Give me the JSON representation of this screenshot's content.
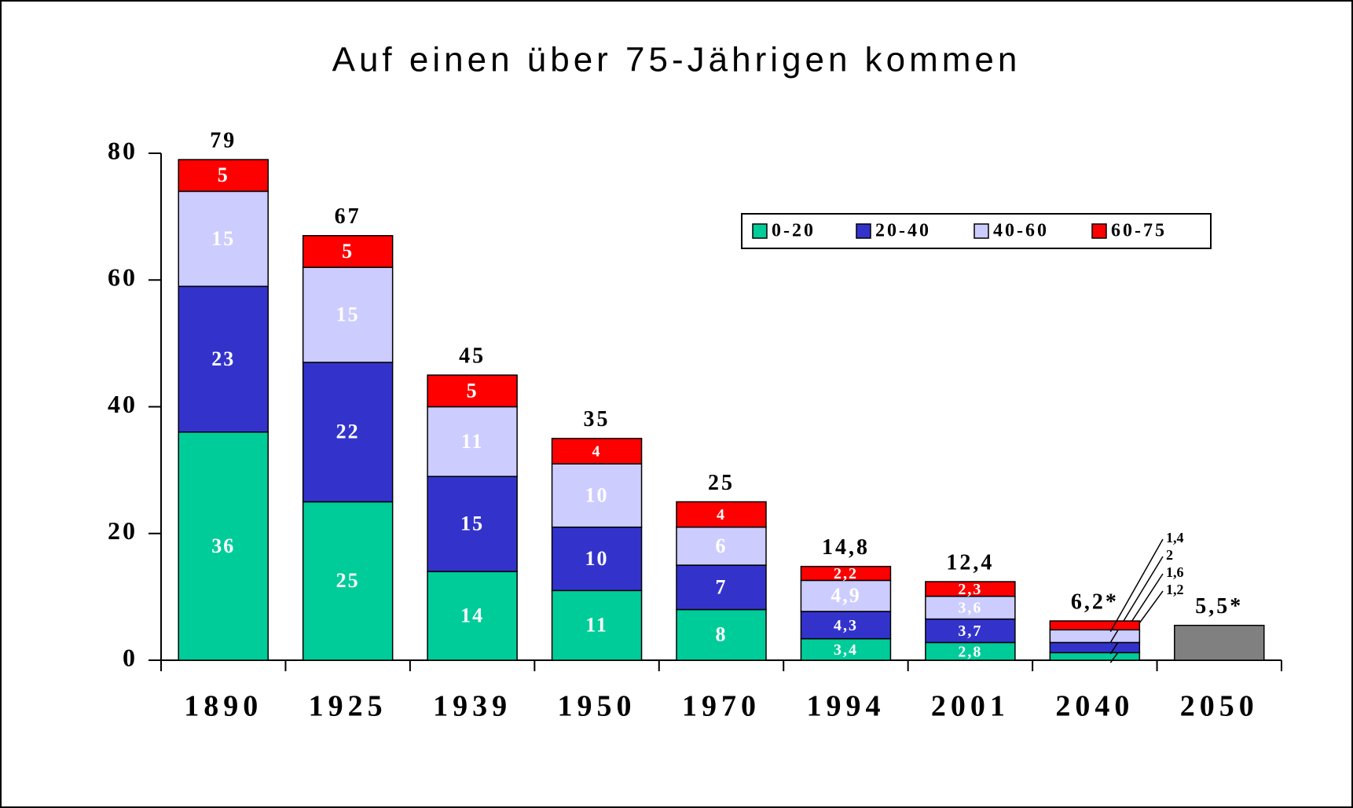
{
  "chart_data": {
    "type": "stacked_bar",
    "title": "Auf einen über 75-Jährigen kommen",
    "categories": [
      "1890",
      "1925",
      "1939",
      "1950",
      "1970",
      "1994",
      "2001",
      "2040",
      "2050"
    ],
    "series": [
      {
        "name": "0-20",
        "color": "#00cc99",
        "values": [
          36,
          25,
          14,
          11,
          8,
          3.4,
          2.8,
          1.2,
          null
        ],
        "value_labels": [
          "36",
          "25",
          "14",
          "11",
          "8",
          "3,4",
          "2,8",
          "1,2",
          null
        ]
      },
      {
        "name": "20-40",
        "color": "#3333cc",
        "values": [
          23,
          22,
          15,
          10,
          7,
          4.3,
          3.7,
          1.6,
          null
        ],
        "value_labels": [
          "23",
          "22",
          "15",
          "10",
          "7",
          "4,3",
          "3,7",
          "1,6",
          null
        ]
      },
      {
        "name": "40-60",
        "color": "#ccccff",
        "values": [
          15,
          15,
          11,
          10,
          6,
          4.9,
          3.6,
          2,
          null
        ],
        "value_labels": [
          "15",
          "15",
          "11",
          "10",
          "6",
          "4,9",
          "3,6",
          "2",
          null
        ]
      },
      {
        "name": "60-75",
        "color": "#ff0000",
        "values": [
          5,
          5,
          5,
          4,
          4,
          2.2,
          2.3,
          1.4,
          null
        ],
        "value_labels": [
          "5",
          "5",
          "5",
          "4",
          "4",
          "2,2",
          "2,3",
          "1,4",
          null
        ]
      }
    ],
    "totals": {
      "values": [
        79,
        67,
        45,
        35,
        25,
        14.8,
        12.4,
        6.2,
        5.5
      ],
      "value_labels": [
        "79",
        "67",
        "45",
        "35",
        "25",
        "14,8",
        "12,4",
        "6,2*",
        "5,5*"
      ],
      "color": "#808080"
    },
    "ylim": [
      0,
      80
    ],
    "yticks": [
      0,
      20,
      40,
      60,
      80
    ],
    "grid": false,
    "legend": "upper right"
  }
}
